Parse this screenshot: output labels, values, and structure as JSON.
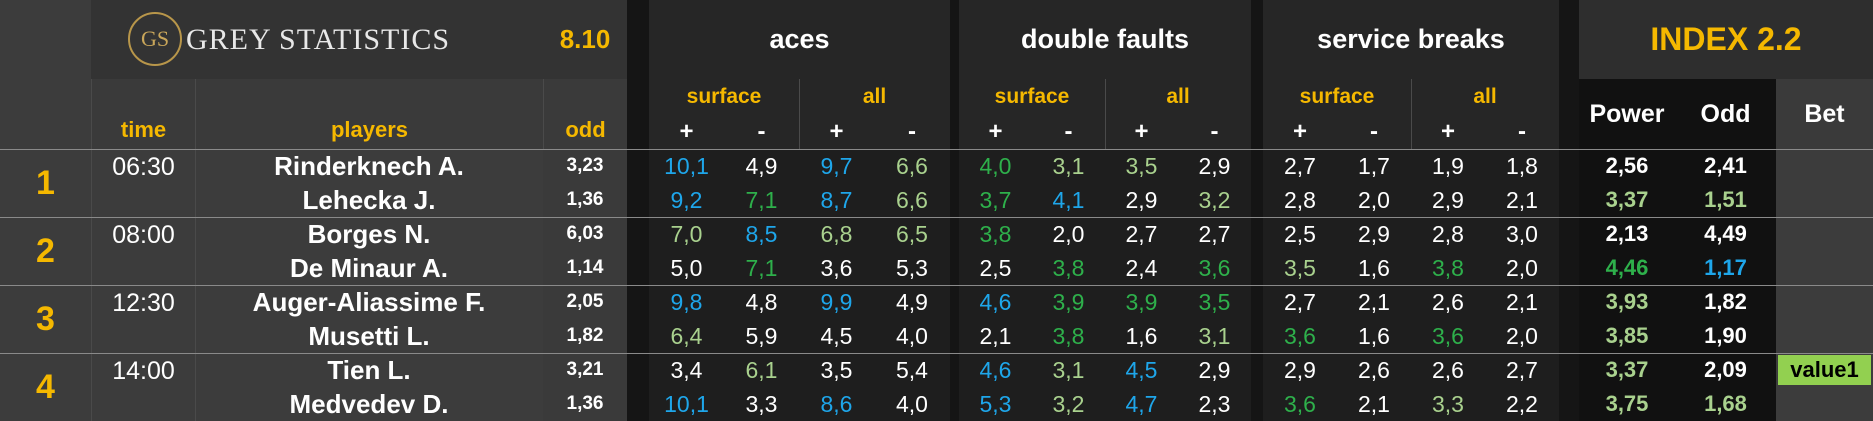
{
  "header": {
    "logo": "GS",
    "brand": "GREY STATISTICS",
    "version": "8.10",
    "index": "INDEX 2.2"
  },
  "columns": {
    "time": "time",
    "players": "players",
    "odd": "odd",
    "power": "Power",
    "odd2": "Odd",
    "bet": "Bet"
  },
  "groups": [
    "aces",
    "double faults",
    "service breaks"
  ],
  "subgroups": [
    "surface",
    "all"
  ],
  "signs": [
    "+",
    "-"
  ],
  "palette": {
    "w": "#ffffff",
    "b": "#1ea6ea",
    "l": "#a9d18e",
    "g": "#2eb04b"
  },
  "matches": [
    {
      "num": "1",
      "time": "06:30",
      "players": [
        {
          "name": "Rinderknech A.",
          "odd": "3,23",
          "stats": [
            "10,1",
            "4,9",
            "9,7",
            "6,6",
            "4,0",
            "3,1",
            "3,5",
            "2,9",
            "2,7",
            "1,7",
            "1,9",
            "1,8"
          ],
          "stat_colors": [
            "b",
            "w",
            "b",
            "l",
            "g",
            "l",
            "l",
            "w",
            "w",
            "w",
            "w",
            "w"
          ],
          "power": "2,56",
          "power_color": "w",
          "odd2": "2,41",
          "odd2_color": "w"
        },
        {
          "name": "Lehecka J.",
          "odd": "1,36",
          "stats": [
            "9,2",
            "7,1",
            "8,7",
            "6,6",
            "3,7",
            "4,1",
            "2,9",
            "3,2",
            "2,8",
            "2,0",
            "2,9",
            "2,1"
          ],
          "stat_colors": [
            "b",
            "g",
            "b",
            "l",
            "g",
            "b",
            "w",
            "l",
            "w",
            "w",
            "w",
            "w"
          ],
          "power": "3,37",
          "power_color": "l",
          "odd2": "1,51",
          "odd2_color": "l"
        }
      ]
    },
    {
      "num": "2",
      "time": "08:00",
      "players": [
        {
          "name": "Borges N.",
          "odd": "6,03",
          "stats": [
            "7,0",
            "8,5",
            "6,8",
            "6,5",
            "3,8",
            "2,0",
            "2,7",
            "2,7",
            "2,5",
            "2,9",
            "2,8",
            "3,0"
          ],
          "stat_colors": [
            "l",
            "b",
            "l",
            "l",
            "g",
            "w",
            "w",
            "w",
            "w",
            "w",
            "w",
            "w"
          ],
          "power": "2,13",
          "power_color": "w",
          "odd2": "4,49",
          "odd2_color": "w"
        },
        {
          "name": "De Minaur A.",
          "odd": "1,14",
          "stats": [
            "5,0",
            "7,1",
            "3,6",
            "5,3",
            "2,5",
            "3,8",
            "2,4",
            "3,6",
            "3,5",
            "1,6",
            "3,8",
            "2,0"
          ],
          "stat_colors": [
            "w",
            "g",
            "w",
            "w",
            "w",
            "g",
            "w",
            "g",
            "l",
            "w",
            "g",
            "w"
          ],
          "power": "4,46",
          "power_color": "g",
          "odd2": "1,17",
          "odd2_color": "b"
        }
      ]
    },
    {
      "num": "3",
      "time": "12:30",
      "players": [
        {
          "name": "Auger-Aliassime F.",
          "odd": "2,05",
          "stats": [
            "9,8",
            "4,8",
            "9,9",
            "4,9",
            "4,6",
            "3,9",
            "3,9",
            "3,5",
            "2,7",
            "2,1",
            "2,6",
            "2,1"
          ],
          "stat_colors": [
            "b",
            "w",
            "b",
            "w",
            "b",
            "g",
            "g",
            "g",
            "w",
            "w",
            "w",
            "w"
          ],
          "power": "3,93",
          "power_color": "l",
          "odd2": "1,82",
          "odd2_color": "w"
        },
        {
          "name": "Musetti L.",
          "odd": "1,82",
          "stats": [
            "6,4",
            "5,9",
            "4,5",
            "4,0",
            "2,1",
            "3,8",
            "1,6",
            "3,1",
            "3,6",
            "1,6",
            "3,6",
            "2,0"
          ],
          "stat_colors": [
            "l",
            "w",
            "w",
            "w",
            "w",
            "g",
            "w",
            "l",
            "g",
            "w",
            "g",
            "w"
          ],
          "power": "3,85",
          "power_color": "l",
          "odd2": "1,90",
          "odd2_color": "w"
        }
      ]
    },
    {
      "num": "4",
      "time": "14:00",
      "bet": "value1",
      "players": [
        {
          "name": "Tien L.",
          "odd": "3,21",
          "stats": [
            "3,4",
            "6,1",
            "3,5",
            "5,4",
            "4,6",
            "3,1",
            "4,5",
            "2,9",
            "2,9",
            "2,6",
            "2,6",
            "2,7"
          ],
          "stat_colors": [
            "w",
            "l",
            "w",
            "w",
            "b",
            "l",
            "b",
            "w",
            "w",
            "w",
            "w",
            "w"
          ],
          "power": "3,37",
          "power_color": "l",
          "odd2": "2,09",
          "odd2_color": "w"
        },
        {
          "name": "Medvedev D.",
          "odd": "1,36",
          "stats": [
            "10,1",
            "3,3",
            "8,6",
            "4,0",
            "5,3",
            "3,2",
            "4,7",
            "2,3",
            "3,6",
            "2,1",
            "3,3",
            "2,2"
          ],
          "stat_colors": [
            "b",
            "w",
            "b",
            "w",
            "b",
            "l",
            "b",
            "w",
            "g",
            "w",
            "l",
            "w"
          ],
          "power": "3,75",
          "power_color": "l",
          "odd2": "1,68",
          "odd2_color": "l"
        }
      ]
    }
  ]
}
